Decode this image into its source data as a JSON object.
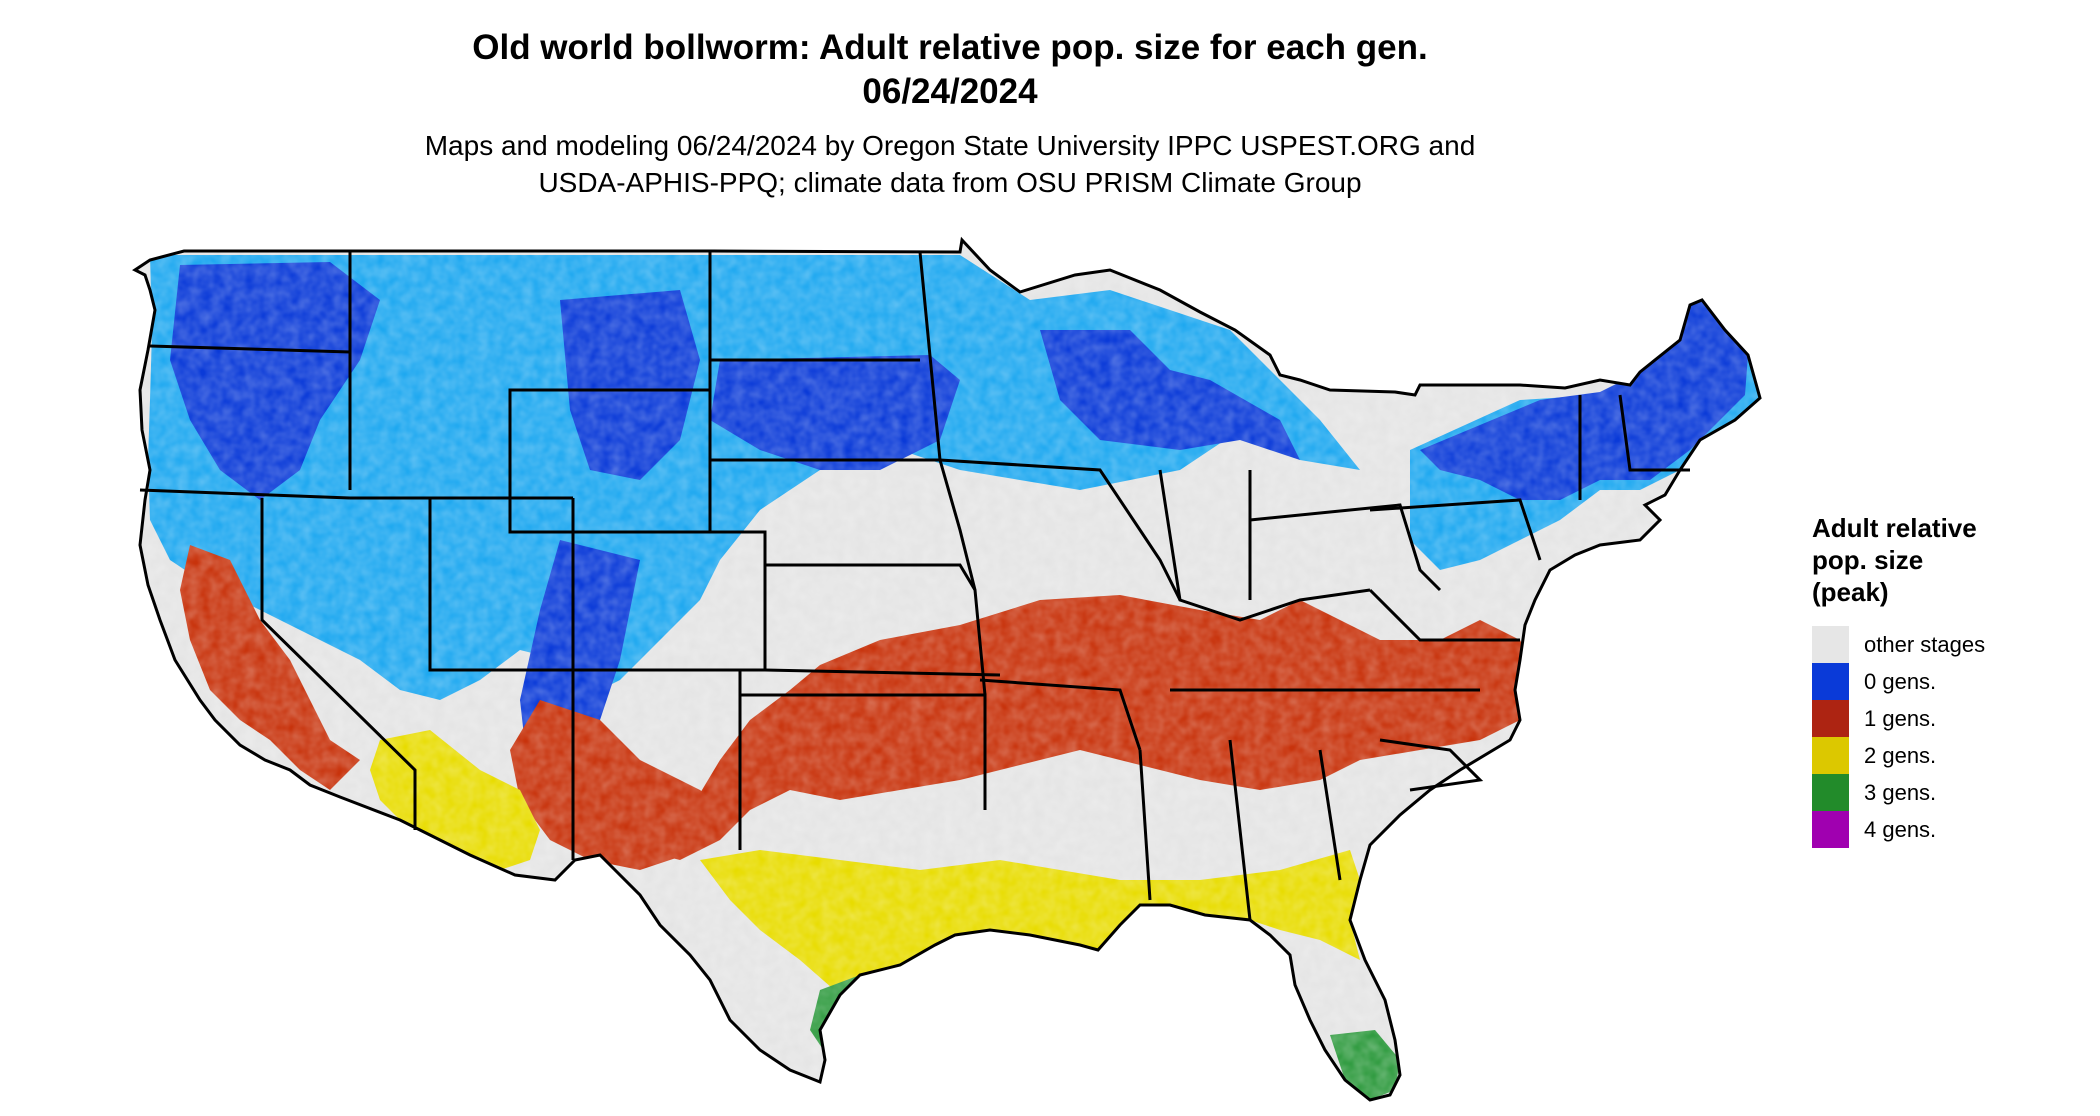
{
  "title": {
    "line1": "Old world bollworm: Adult relative pop. size for each gen.",
    "line2": "06/24/2024"
  },
  "subtitle": {
    "line1": "Maps and modeling 06/24/2024 by Oregon State University IPPC USPEST.ORG and",
    "line2": "USDA-APHIS-PPQ; climate data from OSU PRISM Climate Group"
  },
  "legend": {
    "title_lines": [
      "Adult relative",
      "pop. size",
      "(peak)"
    ],
    "items": [
      {
        "label": "other stages",
        "color": "#e6e6e6"
      },
      {
        "label": "0 gens.",
        "color": "#0a3ad8"
      },
      {
        "label": "1 gens.",
        "color": "#ad2412"
      },
      {
        "label": "2 gens.",
        "color": "#dcc800"
      },
      {
        "label": "3 gens.",
        "color": "#228b2a"
      },
      {
        "label": "4 gens.",
        "color": "#a000b0"
      }
    ]
  },
  "map": {
    "region": "Contiguous United States",
    "boundary_color": "#000000",
    "fill_colors": {
      "background_land": "#e4e4e4",
      "zero_gens_light": "#1ea8f0",
      "zero_gens_dark": "#0a3ad8",
      "one_gen": "#c8330c",
      "two_gens": "#e8dc00",
      "three_gens": "#2e9a3e"
    }
  }
}
